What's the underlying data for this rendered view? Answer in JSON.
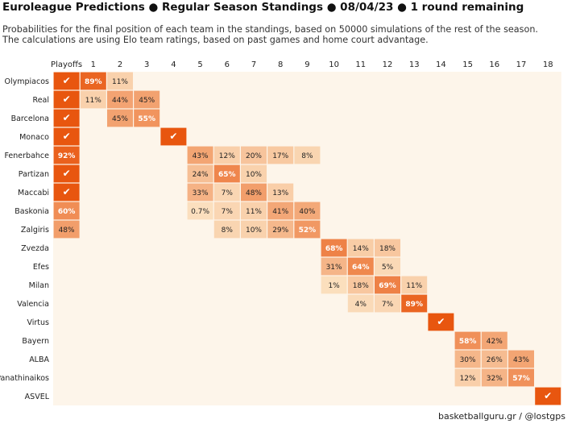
{
  "title": "Euroleague Predictions ● Regular Season Standings ● 08/04/23 ● 1 round remaining",
  "subtitle_lines": [
    "Probabilities for the final position of each team in the standings, based on 50000 simulations of the rest of the season.",
    "The calculations are using Elo team ratings, based on past games and home court advantage."
  ],
  "footer": "basketballguru.gr / @lostgps",
  "colors": {
    "background_cell": "#fdf5ea",
    "low": "#fbe0bf",
    "high": "#e8560f",
    "text_dark": "#222222",
    "text_light": "#ffffff"
  },
  "check_symbol": "✔",
  "chart_data": {
    "type": "heatmap",
    "columns": [
      "Playoffs",
      "1",
      "2",
      "3",
      "4",
      "5",
      "6",
      "7",
      "8",
      "9",
      "10",
      "11",
      "12",
      "13",
      "14",
      "15",
      "16",
      "17",
      "18"
    ],
    "rows": [
      {
        "team": "Olympiacos",
        "cells": {
          "Playoffs": "✔",
          "1": "89%",
          "2": "11%"
        }
      },
      {
        "team": "Real",
        "cells": {
          "Playoffs": "✔",
          "1": "11%",
          "2": "44%",
          "3": "45%"
        }
      },
      {
        "team": "Barcelona",
        "cells": {
          "Playoffs": "✔",
          "2": "45%",
          "3": "55%"
        }
      },
      {
        "team": "Monaco",
        "cells": {
          "Playoffs": "✔",
          "4": "✔"
        }
      },
      {
        "team": "Fenerbahce",
        "cells": {
          "Playoffs": "92%",
          "5": "43%",
          "6": "12%",
          "7": "20%",
          "8": "17%",
          "9": "8%"
        }
      },
      {
        "team": "Partizan",
        "cells": {
          "Playoffs": "✔",
          "5": "24%",
          "6": "65%",
          "7": "10%"
        }
      },
      {
        "team": "Maccabi",
        "cells": {
          "Playoffs": "✔",
          "5": "33%",
          "6": "7%",
          "7": "48%",
          "8": "13%"
        }
      },
      {
        "team": "Baskonia",
        "cells": {
          "Playoffs": "60%",
          "5": "0.7%",
          "6": "7%",
          "7": "11%",
          "8": "41%",
          "9": "40%"
        }
      },
      {
        "team": "Zalgiris",
        "cells": {
          "Playoffs": "48%",
          "6": "8%",
          "7": "10%",
          "8": "29%",
          "9": "52%"
        }
      },
      {
        "team": "Zvezda",
        "cells": {
          "10": "68%",
          "11": "14%",
          "12": "18%"
        }
      },
      {
        "team": "Efes",
        "cells": {
          "10": "31%",
          "11": "64%",
          "12": "5%"
        }
      },
      {
        "team": "Milan",
        "cells": {
          "10": "1%",
          "11": "18%",
          "12": "69%",
          "13": "11%"
        }
      },
      {
        "team": "Valencia",
        "cells": {
          "11": "4%",
          "12": "7%",
          "13": "89%"
        }
      },
      {
        "team": "Virtus",
        "cells": {
          "14": "✔"
        }
      },
      {
        "team": "Bayern",
        "cells": {
          "15": "58%",
          "16": "42%"
        }
      },
      {
        "team": "ALBA",
        "cells": {
          "15": "30%",
          "16": "26%",
          "17": "43%"
        }
      },
      {
        "team": "Panathinaikos",
        "cells": {
          "15": "12%",
          "16": "32%",
          "17": "57%"
        }
      },
      {
        "team": "ASVEL",
        "cells": {
          "18": "✔"
        }
      }
    ]
  }
}
